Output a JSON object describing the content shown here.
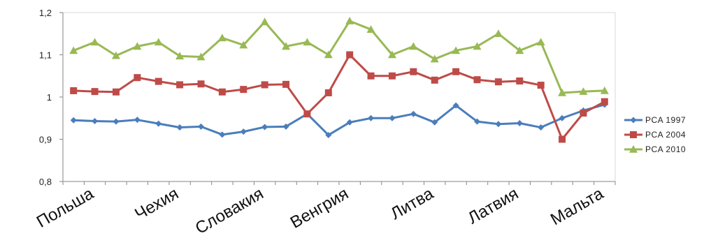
{
  "chart_data": {
    "type": "line",
    "ylim": [
      0.8,
      1.2
    ],
    "yticks": [
      0.8,
      0.9,
      1,
      1.1,
      1.2
    ],
    "ytick_labels": [
      "0,8",
      "0,9",
      "1",
      "1,1",
      "1,2"
    ],
    "grid": false,
    "legend_position": "right",
    "category_labels": [
      {
        "index": 1,
        "label": "Польша"
      },
      {
        "index": 5,
        "label": "Чехия"
      },
      {
        "index": 9,
        "label": "Словакия"
      },
      {
        "index": 13,
        "label": "Венгрия"
      },
      {
        "index": 17,
        "label": "Литва"
      },
      {
        "index": 21,
        "label": "Латвия"
      },
      {
        "index": 25,
        "label": "Мальта"
      }
    ],
    "series": [
      {
        "name": "PCA 1997",
        "color": "#4a7ebb",
        "marker": "diamond",
        "values": [
          0.945,
          0.943,
          0.942,
          0.946,
          0.937,
          0.928,
          0.93,
          0.911,
          0.918,
          0.929,
          0.93,
          0.96,
          0.91,
          0.94,
          0.95,
          0.95,
          0.96,
          0.94,
          0.98,
          0.942,
          0.936,
          0.938,
          0.928,
          0.95,
          0.968,
          0.982
        ]
      },
      {
        "name": "PCA 2004",
        "color": "#be4b48",
        "marker": "square",
        "values": [
          1.015,
          1.013,
          1.012,
          1.046,
          1.037,
          1.029,
          1.031,
          1.012,
          1.018,
          1.029,
          1.03,
          0.96,
          1.01,
          1.1,
          1.05,
          1.05,
          1.06,
          1.04,
          1.06,
          1.041,
          1.036,
          1.038,
          1.028,
          0.9,
          0.962,
          0.989
        ]
      },
      {
        "name": "PCA 2010",
        "color": "#98b954",
        "marker": "triangle",
        "values": [
          1.11,
          1.13,
          1.098,
          1.12,
          1.13,
          1.097,
          1.095,
          1.14,
          1.123,
          1.178,
          1.12,
          1.13,
          1.1,
          1.18,
          1.16,
          1.1,
          1.12,
          1.09,
          1.11,
          1.12,
          1.15,
          1.11,
          1.13,
          1.01,
          1.013,
          1.015
        ]
      }
    ]
  }
}
